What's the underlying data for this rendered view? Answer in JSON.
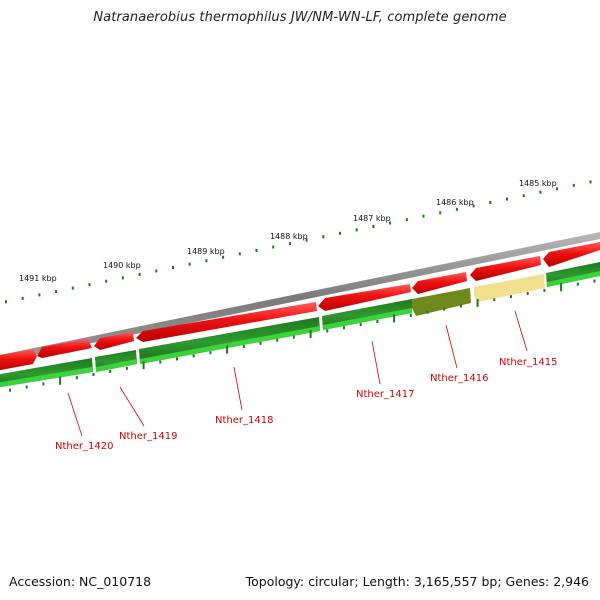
{
  "header": {
    "title": "Natranaerobius thermophilus JW/NM-WN-LF, complete genome"
  },
  "footer": {
    "accession": "Accession: NC_010718",
    "topology": "Topology: circular; Length: 3,165,557 bp; Genes: 2,946"
  },
  "kbp_ticks": [
    {
      "label": "1485 kbp",
      "kbp": 1485
    },
    {
      "label": "1486 kbp",
      "kbp": 1486
    },
    {
      "label": "1487 kbp",
      "kbp": 1487
    },
    {
      "label": "1488 kbp",
      "kbp": 1488
    },
    {
      "label": "1489 kbp",
      "kbp": 1489
    },
    {
      "label": "1490 kbp",
      "kbp": 1490
    },
    {
      "label": "1491 kbp",
      "kbp": 1491
    }
  ],
  "genes": [
    {
      "name": "Nther_1415",
      "color": "#f3e08e"
    },
    {
      "name": "Nther_1416",
      "color": "#6f8a1c"
    },
    {
      "name": "Nther_1417",
      "color": "#2e8b2e"
    },
    {
      "name": "Nther_1418",
      "color": "#2e8b2e"
    },
    {
      "name": "Nther_1419",
      "color": "#2e8b2e"
    },
    {
      "name": "Nther_1420",
      "color": "#2e8b2e"
    }
  ],
  "colors": {
    "forward_cds": "#ee1111",
    "reverse_cds": "#2a8a2a",
    "backbone": "#8a8a8a",
    "label": "#d40000",
    "tick": "#1a7a1a"
  }
}
